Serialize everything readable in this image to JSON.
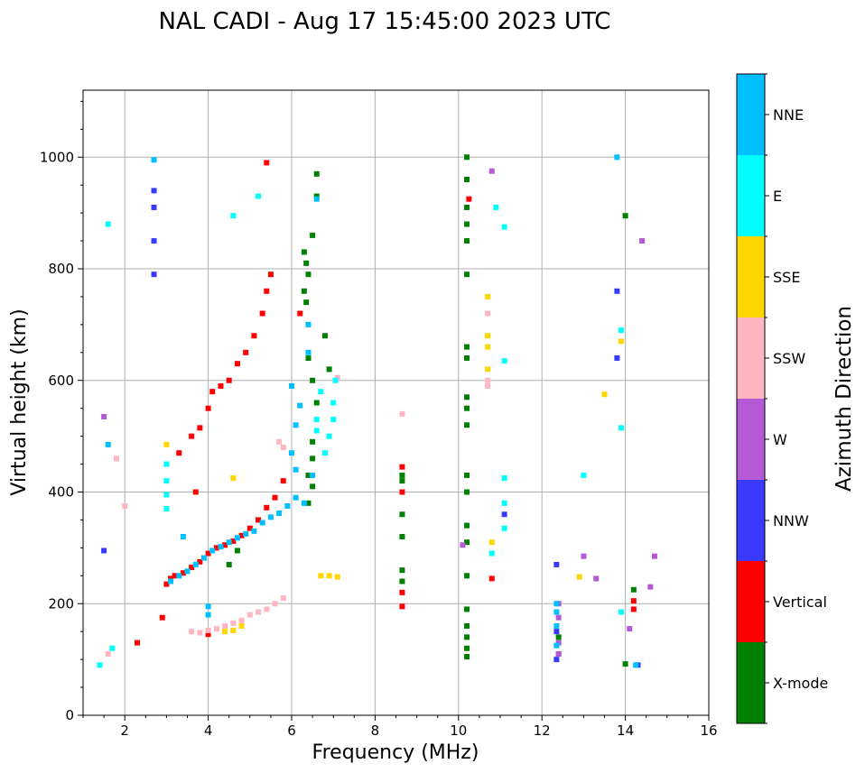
{
  "chart_data": {
    "type": "scatter",
    "title": "NAL CADI - Aug 17 15:45:00 2023 UTC",
    "xlabel": "Frequency (MHz)",
    "ylabel": "Virtual height (km)",
    "xlim": [
      1,
      16
    ],
    "ylim": [
      0,
      1120
    ],
    "xticks": [
      "2",
      "4",
      "6",
      "8",
      "10",
      "12",
      "14",
      "16"
    ],
    "yticks": [
      "0",
      "200",
      "400",
      "600",
      "800",
      "1000"
    ],
    "grid": true,
    "colorbar": {
      "label": "Azimuth Direction",
      "categories": [
        {
          "name": "X-mode",
          "color": "#008000"
        },
        {
          "name": "Vertical",
          "color": "#ff0000"
        },
        {
          "name": "NNW",
          "color": "#3a3aff"
        },
        {
          "name": "W",
          "color": "#b45ad6"
        },
        {
          "name": "SSW",
          "color": "#ffb6c1"
        },
        {
          "name": "SSE",
          "color": "#ffd700"
        },
        {
          "name": "E",
          "color": "#00ffff"
        },
        {
          "name": "NNE",
          "color": "#00bfff"
        }
      ]
    },
    "series": [
      {
        "name": "X-mode",
        "points": [
          [
            6.3,
            830
          ],
          [
            6.35,
            810
          ],
          [
            6.4,
            790
          ],
          [
            6.3,
            760
          ],
          [
            6.35,
            740
          ],
          [
            6.6,
            970
          ],
          [
            6.6,
            930
          ],
          [
            6.5,
            860
          ],
          [
            6.4,
            640
          ],
          [
            6.5,
            600
          ],
          [
            6.6,
            560
          ],
          [
            6.5,
            490
          ],
          [
            6.5,
            460
          ],
          [
            6.4,
            430
          ],
          [
            6.5,
            410
          ],
          [
            6.4,
            380
          ],
          [
            8.65,
            430
          ],
          [
            8.65,
            420
          ],
          [
            8.65,
            360
          ],
          [
            8.65,
            320
          ],
          [
            8.65,
            260
          ],
          [
            8.65,
            240
          ],
          [
            4.5,
            270
          ],
          [
            4.7,
            295
          ],
          [
            10.2,
            1000
          ],
          [
            10.2,
            960
          ],
          [
            10.2,
            910
          ],
          [
            10.2,
            880
          ],
          [
            10.2,
            850
          ],
          [
            10.2,
            790
          ],
          [
            10.2,
            660
          ],
          [
            10.2,
            640
          ],
          [
            10.2,
            570
          ],
          [
            10.2,
            550
          ],
          [
            10.2,
            520
          ],
          [
            10.2,
            430
          ],
          [
            10.2,
            400
          ],
          [
            10.2,
            340
          ],
          [
            10.2,
            310
          ],
          [
            10.2,
            250
          ],
          [
            10.2,
            190
          ],
          [
            10.2,
            160
          ],
          [
            10.2,
            140
          ],
          [
            10.2,
            120
          ],
          [
            10.2,
            105
          ],
          [
            14.0,
            895
          ],
          [
            14.0,
            92
          ],
          [
            12.4,
            140
          ],
          [
            12.4,
            110
          ],
          [
            14.2,
            225
          ],
          [
            6.8,
            680
          ],
          [
            6.9,
            620
          ]
        ]
      },
      {
        "name": "Vertical",
        "points": [
          [
            3.0,
            235
          ],
          [
            3.1,
            245
          ],
          [
            3.2,
            250
          ],
          [
            3.4,
            255
          ],
          [
            3.6,
            265
          ],
          [
            3.8,
            275
          ],
          [
            4.0,
            290
          ],
          [
            4.2,
            300
          ],
          [
            4.4,
            305
          ],
          [
            4.6,
            312
          ],
          [
            4.8,
            322
          ],
          [
            5.0,
            335
          ],
          [
            5.2,
            350
          ],
          [
            5.4,
            372
          ],
          [
            5.6,
            390
          ],
          [
            5.8,
            420
          ],
          [
            2.9,
            175
          ],
          [
            2.3,
            130
          ],
          [
            3.7,
            400
          ],
          [
            4.0,
            550
          ],
          [
            4.1,
            580
          ],
          [
            4.3,
            590
          ],
          [
            4.5,
            600
          ],
          [
            4.7,
            630
          ],
          [
            4.9,
            650
          ],
          [
            5.1,
            680
          ],
          [
            5.3,
            720
          ],
          [
            5.4,
            760
          ],
          [
            5.5,
            790
          ],
          [
            3.6,
            500
          ],
          [
            3.8,
            515
          ],
          [
            3.3,
            470
          ],
          [
            4.0,
            145
          ],
          [
            5.4,
            990
          ],
          [
            6.2,
            720
          ],
          [
            8.65,
            445
          ],
          [
            8.65,
            400
          ],
          [
            8.65,
            220
          ],
          [
            8.65,
            195
          ],
          [
            10.25,
            925
          ],
          [
            14.2,
            205
          ],
          [
            14.2,
            190
          ],
          [
            10.8,
            245
          ]
        ]
      },
      {
        "name": "NNW",
        "points": [
          [
            1.5,
            295
          ],
          [
            12.35,
            270
          ],
          [
            12.35,
            150
          ],
          [
            12.35,
            100
          ],
          [
            13.8,
            640
          ],
          [
            13.8,
            760
          ],
          [
            14.3,
            90
          ],
          [
            11.1,
            360
          ],
          [
            2.7,
            850
          ],
          [
            2.7,
            940
          ],
          [
            2.7,
            910
          ],
          [
            2.7,
            790
          ]
        ]
      },
      {
        "name": "W",
        "points": [
          [
            1.5,
            535
          ],
          [
            12.4,
            200
          ],
          [
            12.4,
            175
          ],
          [
            12.4,
            130
          ],
          [
            12.4,
            110
          ],
          [
            13.0,
            285
          ],
          [
            13.3,
            245
          ],
          [
            14.1,
            155
          ],
          [
            14.6,
            230
          ],
          [
            14.7,
            285
          ],
          [
            10.1,
            305
          ],
          [
            10.8,
            975
          ],
          [
            14.4,
            850
          ]
        ]
      },
      {
        "name": "SSW",
        "points": [
          [
            3.6,
            150
          ],
          [
            3.8,
            148
          ],
          [
            4.0,
            152
          ],
          [
            4.2,
            155
          ],
          [
            4.4,
            160
          ],
          [
            4.6,
            165
          ],
          [
            4.8,
            170
          ],
          [
            5.0,
            180
          ],
          [
            5.2,
            185
          ],
          [
            5.4,
            190
          ],
          [
            5.6,
            200
          ],
          [
            5.8,
            210
          ],
          [
            1.8,
            460
          ],
          [
            2.0,
            375
          ],
          [
            5.7,
            490
          ],
          [
            5.8,
            480
          ],
          [
            10.7,
            720
          ],
          [
            10.7,
            590
          ],
          [
            10.7,
            600
          ],
          [
            8.65,
            540
          ],
          [
            7.1,
            605
          ],
          [
            1.6,
            110
          ]
        ]
      },
      {
        "name": "SSE",
        "points": [
          [
            3.0,
            485
          ],
          [
            4.4,
            150
          ],
          [
            4.6,
            152
          ],
          [
            4.8,
            160
          ],
          [
            6.7,
            250
          ],
          [
            6.9,
            250
          ],
          [
            7.1,
            248
          ],
          [
            10.7,
            750
          ],
          [
            10.7,
            680
          ],
          [
            10.7,
            660
          ],
          [
            10.7,
            620
          ],
          [
            10.8,
            310
          ],
          [
            12.9,
            248
          ],
          [
            13.5,
            575
          ],
          [
            13.9,
            670
          ],
          [
            4.6,
            425
          ]
        ]
      },
      {
        "name": "E",
        "points": [
          [
            3.0,
            450
          ],
          [
            3.0,
            420
          ],
          [
            3.0,
            395
          ],
          [
            3.0,
            370
          ],
          [
            6.8,
            470
          ],
          [
            6.9,
            500
          ],
          [
            7.0,
            530
          ],
          [
            7.0,
            560
          ],
          [
            7.05,
            600
          ],
          [
            6.7,
            580
          ],
          [
            6.6,
            530
          ],
          [
            6.6,
            510
          ],
          [
            1.6,
            880
          ],
          [
            1.4,
            90
          ],
          [
            1.7,
            120
          ],
          [
            4.6,
            895
          ],
          [
            10.9,
            910
          ],
          [
            11.1,
            875
          ],
          [
            11.1,
            635
          ],
          [
            11.1,
            425
          ],
          [
            11.1,
            380
          ],
          [
            11.1,
            335
          ],
          [
            10.8,
            290
          ],
          [
            13.0,
            430
          ],
          [
            13.9,
            690
          ],
          [
            13.9,
            515
          ],
          [
            13.9,
            185
          ],
          [
            5.2,
            930
          ]
        ]
      },
      {
        "name": "NNE",
        "points": [
          [
            3.1,
            240
          ],
          [
            3.3,
            250
          ],
          [
            3.5,
            258
          ],
          [
            3.7,
            270
          ],
          [
            3.9,
            282
          ],
          [
            4.1,
            295
          ],
          [
            4.3,
            302
          ],
          [
            4.5,
            310
          ],
          [
            4.7,
            318
          ],
          [
            4.9,
            325
          ],
          [
            5.1,
            330
          ],
          [
            5.3,
            345
          ],
          [
            5.5,
            355
          ],
          [
            5.7,
            362
          ],
          [
            5.9,
            375
          ],
          [
            6.1,
            390
          ],
          [
            6.3,
            380
          ],
          [
            6.5,
            430
          ],
          [
            6.0,
            470
          ],
          [
            6.2,
            555
          ],
          [
            6.4,
            700
          ],
          [
            6.4,
            650
          ],
          [
            6.6,
            925
          ],
          [
            6.0,
            590
          ],
          [
            6.1,
            520
          ],
          [
            6.1,
            440
          ],
          [
            12.35,
            200
          ],
          [
            12.35,
            185
          ],
          [
            12.35,
            160
          ],
          [
            12.35,
            125
          ],
          [
            14.25,
            90
          ],
          [
            13.8,
            1000
          ],
          [
            2.7,
            995
          ],
          [
            1.6,
            485
          ],
          [
            3.4,
            320
          ],
          [
            4.0,
            195
          ],
          [
            4.0,
            180
          ]
        ]
      }
    ]
  }
}
